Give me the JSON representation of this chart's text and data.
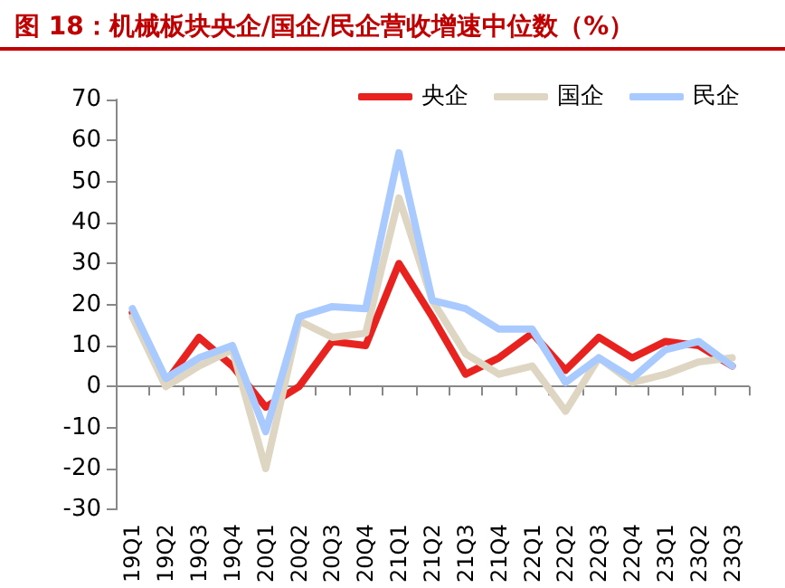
{
  "chart_data": {
    "type": "line",
    "title": "图 18：机械板块央企/国企/民企营收增速中位数（%）",
    "categories": [
      "19Q1",
      "19Q2",
      "19Q3",
      "19Q4",
      "20Q1",
      "20Q2",
      "20Q3",
      "20Q4",
      "21Q1",
      "21Q2",
      "21Q3",
      "21Q4",
      "22Q1",
      "22Q2",
      "22Q3",
      "22Q4",
      "23Q1",
      "23Q2",
      "23Q3"
    ],
    "series": [
      {
        "name": "央企",
        "color": "#e8231f",
        "values": [
          18,
          1,
          12,
          5,
          -5,
          0,
          11,
          10,
          30,
          17,
          3,
          7,
          13,
          4,
          12,
          7,
          11,
          10,
          5
        ]
      },
      {
        "name": "国企",
        "color": "#ded6c3",
        "values": [
          17,
          0,
          5,
          9,
          -20,
          16,
          12,
          13,
          46,
          21,
          8,
          3,
          5,
          -6,
          7,
          1,
          3,
          6,
          7
        ]
      },
      {
        "name": "民企",
        "color": "#a9caff",
        "values": [
          19,
          2,
          7,
          10,
          -11,
          17,
          19.5,
          19,
          57,
          21,
          19,
          14,
          14,
          1,
          7,
          2,
          9,
          11,
          5
        ]
      }
    ],
    "ylim": [
      -30,
      70
    ],
    "yticks": [
      -30,
      -20,
      -10,
      0,
      10,
      20,
      30,
      40,
      50,
      60,
      70
    ],
    "legend": "top right",
    "marker": "none",
    "line_style": "solid"
  }
}
